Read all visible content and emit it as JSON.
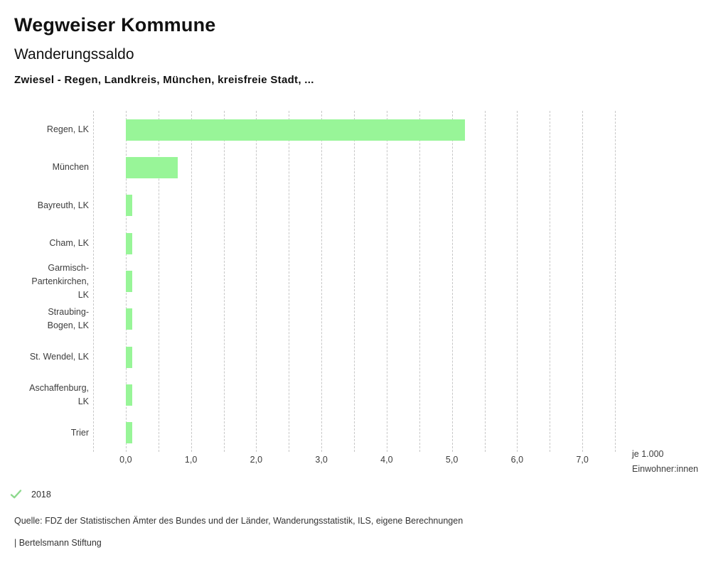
{
  "header": {
    "app_title": "Wegweiser Kommune",
    "chart_title": "Wanderungssaldo",
    "chart_subtitle": "Zwiesel - Regen, Landkreis, München, kreisfreie Stadt, ..."
  },
  "chart_data": {
    "type": "bar",
    "orientation": "horizontal",
    "categories": [
      "Regen, LK",
      "München",
      "Bayreuth, LK",
      "Cham, LK",
      "Garmisch-\nPartenkirchen,\nLK",
      "Straubing-\nBogen, LK",
      "St. Wendel, LK",
      "Aschaffenburg,\nLK",
      "Trier"
    ],
    "series": [
      {
        "name": "2018",
        "values": [
          5.2,
          0.8,
          0.1,
          0.1,
          0.1,
          0.1,
          0.1,
          0.1,
          0.1
        ]
      }
    ],
    "x_tick_labels": [
      "0,0",
      "1,0",
      "2,0",
      "3,0",
      "4,0",
      "5,0",
      "6,0",
      "7,0"
    ],
    "x_tick_values": [
      0,
      1,
      2,
      3,
      4,
      5,
      6,
      7
    ],
    "xlim": [
      -0.5,
      7.5
    ],
    "grid_step": 0.5,
    "grid": true,
    "xlabel": "je 1.000\nEinwohner:innen",
    "bar_color": "#98f598",
    "grid_color": "#c7c7c7"
  },
  "legend": {
    "items": [
      {
        "label": "2018",
        "marker": "check-icon",
        "marker_color": "#8dd98d"
      }
    ]
  },
  "footer": {
    "source": "Quelle: FDZ der Statistischen Ämter des Bundes und der Länder, Wanderungsstatistik, ILS, eigene Berechnungen",
    "branding": "| Bertelsmann Stiftung"
  }
}
